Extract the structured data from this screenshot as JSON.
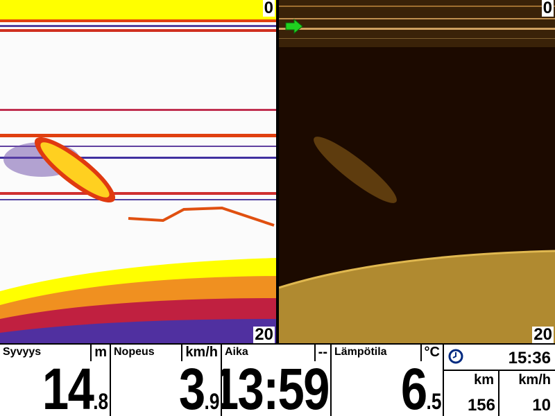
{
  "sonar_left": {
    "depth_top": "0",
    "depth_bottom": "20"
  },
  "sonar_right": {
    "depth_top": "0",
    "depth_bottom": "20"
  },
  "readouts": [
    {
      "label": "Syvyys",
      "unit": "m",
      "whole": "14",
      "fraction": ".8"
    },
    {
      "label": "Nopeus",
      "unit": "km/h",
      "whole": "3",
      "fraction": ".9"
    },
    {
      "label": "Aika",
      "unit": "--",
      "whole": "13:59"
    },
    {
      "label": "Lämpötila",
      "unit": "°C",
      "whole": "6",
      "fraction": ".5"
    }
  ],
  "clock": {
    "time": "15:36",
    "columns": [
      {
        "unit": "km",
        "value": "156"
      },
      {
        "unit": "km/h",
        "value": "10"
      }
    ]
  }
}
